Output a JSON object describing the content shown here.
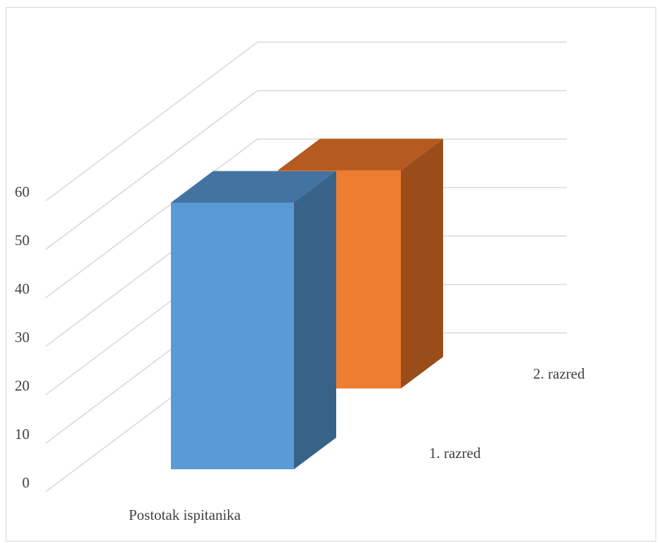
{
  "chart_data": {
    "type": "bar",
    "three_d": true,
    "title": "",
    "categories": [
      "Postotak ispitanika"
    ],
    "series": [
      {
        "name": "1. razred",
        "values": [
          55
        ],
        "color": "#5B9BD5",
        "side_color": "#386388",
        "top_color": "#4373A1"
      },
      {
        "name": "2. razred",
        "values": [
          45
        ],
        "color": "#ED7D31",
        "side_color": "#9A4C1A",
        "top_color": "#B55A21"
      }
    ],
    "yticks": [
      0,
      10,
      20,
      30,
      40,
      50,
      60
    ],
    "ylim": [
      0,
      60
    ],
    "grid": true,
    "legend": "none",
    "gridline_color": "#D9D9D9",
    "frame_color": "#D9D9D9"
  }
}
